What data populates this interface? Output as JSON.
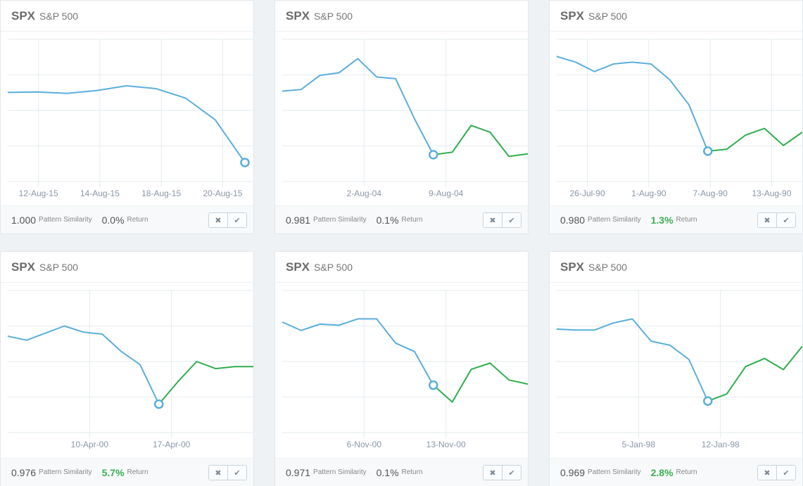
{
  "cards": [
    {
      "ticker": "SPX",
      "name": "S&P 500",
      "similarity": "1.000",
      "similarity_label": "Pattern Similarity",
      "return": "0.0%",
      "return_label": "Return",
      "return_positive": false,
      "reject_label": "✖",
      "accept_label": "✔",
      "chart_data": {
        "type": "line",
        "x_tick_labels": [
          "12-Aug-15",
          "14-Aug-15",
          "18-Aug-15",
          "20-Aug-15"
        ],
        "series": [
          {
            "values": [
              64,
              64.5,
              63,
              66,
              71,
              68,
              58,
              35,
              -10
            ]
          }
        ],
        "forward": [],
        "ylim": [
          -30,
          120
        ],
        "marker_index": 8,
        "grid": true
      }
    },
    {
      "ticker": "SPX",
      "name": "S&P 500",
      "similarity": "0.981",
      "similarity_label": "Pattern Similarity",
      "return": "0.1%",
      "return_label": "Return",
      "return_positive": false,
      "reject_label": "✖",
      "accept_label": "✔",
      "chart_data": {
        "type": "line",
        "x_tick_labels": [
          "2-Aug-04",
          "9-Aug-04"
        ],
        "series": [
          {
            "values": [
              48,
              50,
              67,
              70,
              87,
              65,
              63,
              15,
              -28
            ]
          }
        ],
        "forward": [
          -28,
          -25,
          7,
          -1,
          -30,
          -27
        ],
        "ylim": [
          -60,
          110
        ],
        "marker_index": 8,
        "grid": true
      }
    },
    {
      "ticker": "SPX",
      "name": "S&P 500",
      "similarity": "0.980",
      "similarity_label": "Pattern Similarity",
      "return": "1.3%",
      "return_label": "Return",
      "return_positive": true,
      "reject_label": "✖",
      "accept_label": "✔",
      "chart_data": {
        "type": "line",
        "x_tick_labels": [
          "26-Jul-90",
          "1-Aug-90",
          "7-Aug-90",
          "13-Aug-90"
        ],
        "series": [
          {
            "values": [
              112,
              106,
              96,
              104,
              106,
              104,
              87,
              61,
              12
            ]
          }
        ],
        "forward": [
          12,
          14,
          29,
          36,
          18,
          32
        ],
        "ylim": [
          -20,
          130
        ],
        "marker_index": 8,
        "grid": true
      }
    },
    {
      "ticker": "SPX",
      "name": "S&P 500",
      "similarity": "0.976",
      "similarity_label": "Pattern Similarity",
      "return": "5.7%",
      "return_label": "Return",
      "return_positive": true,
      "reject_label": "✖",
      "accept_label": "✔",
      "chart_data": {
        "type": "line",
        "x_tick_labels": [
          "10-Apr-00",
          "17-Apr-00"
        ],
        "series": [
          {
            "values": [
              70,
              66,
              73,
              80,
              74,
              72,
              55,
              42,
              3
            ]
          }
        ],
        "forward": [
          3,
          25,
          45,
          38,
          40,
          40
        ],
        "ylim": [
          -25,
          115
        ],
        "marker_index": 8,
        "grid": true
      }
    },
    {
      "ticker": "SPX",
      "name": "S&P 500",
      "similarity": "0.971",
      "similarity_label": "Pattern Similarity",
      "return": "0.1%",
      "return_label": "Return",
      "return_positive": false,
      "reject_label": "✖",
      "accept_label": "✔",
      "chart_data": {
        "type": "line",
        "x_tick_labels": [
          "6-Nov-00",
          "13-Nov-00"
        ],
        "series": [
          {
            "values": [
              90,
              82,
              88,
              87,
              93,
              93,
              70,
              62,
              30
            ]
          }
        ],
        "forward": [
          30,
          14,
          45,
          51,
          35,
          31
        ],
        "ylim": [
          -15,
          120
        ],
        "marker_index": 8,
        "grid": true
      }
    },
    {
      "ticker": "SPX",
      "name": "S&P 500",
      "similarity": "0.969",
      "similarity_label": "Pattern Similarity",
      "return": "2.8%",
      "return_label": "Return",
      "return_positive": true,
      "reject_label": "✖",
      "accept_label": "✔",
      "chart_data": {
        "type": "line",
        "x_tick_labels": [
          "5-Jan-98",
          "12-Jan-98"
        ],
        "series": [
          {
            "values": [
              92,
              91,
              91,
              98,
              102,
              80,
              76,
              62,
              21
            ]
          }
        ],
        "forward": [
          21,
          28,
          55,
          63,
          52,
          75
        ],
        "ylim": [
          -10,
          130
        ],
        "marker_index": 8,
        "grid": true
      }
    }
  ],
  "colors": {
    "history": "#5aaedc",
    "forward": "#2fae4e",
    "grid": "#e6ebef",
    "marker_fill": "#ffffff"
  }
}
